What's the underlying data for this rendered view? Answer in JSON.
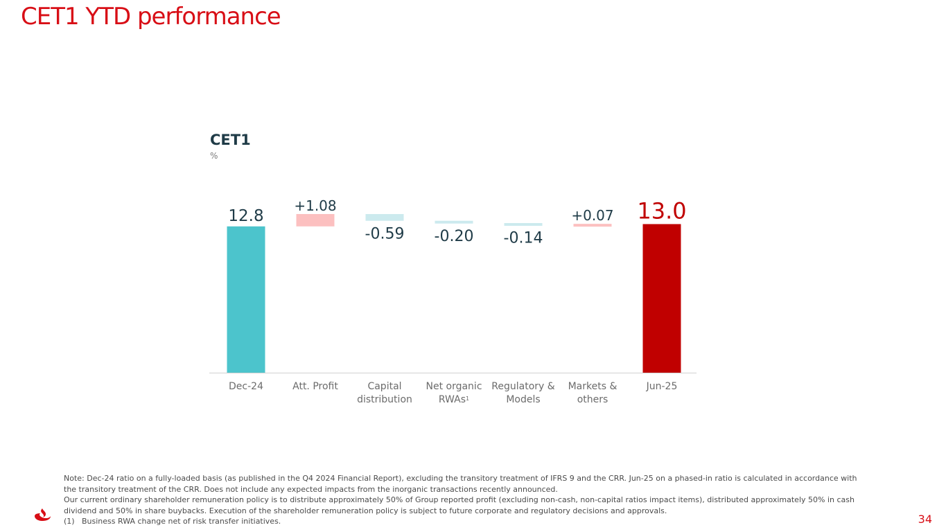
{
  "slide": {
    "title": "CET1 YTD performance",
    "page_number": "34"
  },
  "colors": {
    "brand_red": "#d80e16",
    "start_bar": "#4cc4cc",
    "end_bar": "#c00000",
    "positive_bar": "#fcc0c0",
    "negative_bar": "#cceaee",
    "dark_text": "#1f3b47"
  },
  "chart_data": {
    "type": "waterfall",
    "title": "CET1",
    "unit": "%",
    "ylim": [
      0,
      13.2
    ],
    "categories": [
      "Dec-24",
      "Att. Profit",
      "Capital distribution",
      "Net organic RWAs",
      "Regulatory & Models",
      "Markets & others",
      "Jun-25"
    ],
    "category_footnote": {
      "index": 3,
      "mark": "1"
    },
    "steps": [
      {
        "kind": "total",
        "value": 12.8,
        "label": "12.8"
      },
      {
        "kind": "delta",
        "value": 1.08,
        "label": "+1.08"
      },
      {
        "kind": "delta",
        "value": -0.59,
        "label": "-0.59"
      },
      {
        "kind": "delta",
        "value": -0.2,
        "label": "-0.20"
      },
      {
        "kind": "delta",
        "value": -0.14,
        "label": "-0.14"
      },
      {
        "kind": "delta",
        "value": 0.07,
        "label": "+0.07"
      },
      {
        "kind": "total",
        "value": 13.0,
        "label": "13.0"
      }
    ]
  },
  "notes": {
    "line1": "Note: Dec-24 ratio on a fully-loaded basis (as published in the Q4 2024 Financial Report), excluding the transitory treatment of IFRS 9 and the CRR. Jun-25 on a phased-in ratio is calculated in accordance with the transitory treatment of the CRR. Does not include any expected impacts from the inorganic transactions recently announced.",
    "line2": "Our current ordinary shareholder remuneration policy is to distribute approximately 50% of Group reported profit (excluding non-cash, non-capital ratios impact items), distributed approximately 50% in cash dividend and 50% in share buybacks. Execution of the shareholder remuneration policy is subject to future corporate and regulatory decisions and approvals.",
    "footnote_number": "(1)",
    "footnote_text": "Business RWA change net of risk transfer initiatives."
  }
}
